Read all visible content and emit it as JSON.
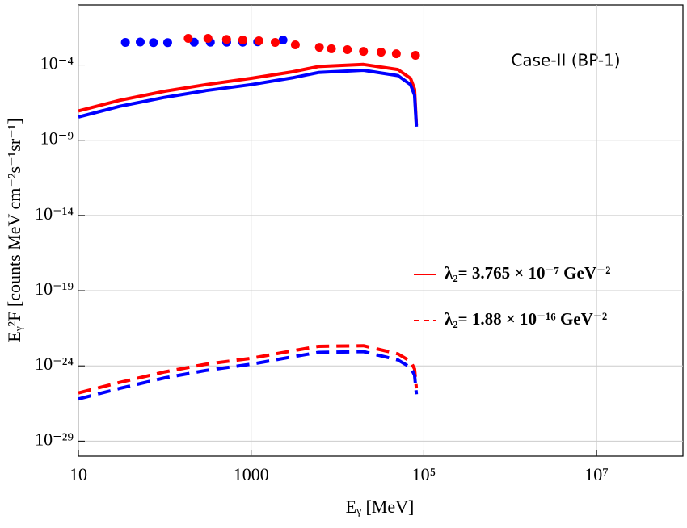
{
  "chart_data": {
    "type": "line",
    "annotation": "Case-II (BP-1)",
    "x_label": "Eᵧ [MeV]",
    "y_label": "Eᵧ²F [counts MeV cm⁻²s⁻¹sr⁻¹]",
    "xscale": "log",
    "yscale": "log",
    "grid": true,
    "xlim": [
      10,
      100000000
    ],
    "ylim": [
      1e-30,
      1
    ],
    "xticks": [
      10,
      1000,
      {
        "value": 100000,
        "label": "10⁵"
      },
      {
        "value": 10000000,
        "label": "10⁷"
      }
    ],
    "yticks": [
      {
        "value": 0.0001,
        "label": "10⁻⁴"
      },
      {
        "value": 1e-09,
        "label": "10⁻⁹"
      },
      {
        "value": 1e-14,
        "label": "10⁻¹⁴"
      },
      {
        "value": 1e-19,
        "label": "10⁻¹⁹"
      },
      {
        "value": 1e-24,
        "label": "10⁻²⁴"
      },
      {
        "value": 1e-29,
        "label": "10⁻²⁹"
      }
    ],
    "series": [
      {
        "name": "λ₂= 3.765 × 10⁻⁷ GeV⁻²",
        "color": "#ff0000",
        "style": "solid",
        "x": [
          10,
          30,
          100,
          300,
          1000,
          3000,
          6000,
          20000,
          50000,
          70000,
          78000,
          82000
        ],
        "values": [
          8.9e-08,
          4.5e-07,
          1.8e-06,
          5e-06,
          1.3e-05,
          3.5e-05,
          7.9e-05,
          0.00011,
          5e-05,
          1.3e-05,
          2.5e-06,
          1e-08
        ]
      },
      {
        "color": "#0000ff",
        "style": "solid",
        "x": [
          10,
          30,
          100,
          300,
          1000,
          3000,
          6000,
          20000,
          50000,
          70000,
          78000,
          82000
        ],
        "values": [
          3.5e-08,
          1.8e-07,
          7.1e-07,
          2e-06,
          5e-06,
          1.4e-05,
          3.2e-05,
          4.5e-05,
          2e-05,
          5e-06,
          1e-06,
          8e-09
        ]
      },
      {
        "name": "λ₂= 1.88 × 10⁻¹⁶ GeV⁻²",
        "color": "#ff0000",
        "style": "dashed",
        "x": [
          10,
          30,
          100,
          300,
          1000,
          3000,
          6000,
          20000,
          50000,
          70000,
          78000,
          82000
        ],
        "values": [
          1.6e-26,
          7.9e-26,
          4e-25,
          1.3e-24,
          3.2e-24,
          1e-23,
          2e-23,
          2.2e-23,
          6.3e-24,
          2e-24,
          6.3e-25,
          3.2e-26
        ]
      },
      {
        "color": "#0000ff",
        "style": "dashed",
        "x": [
          10,
          30,
          100,
          300,
          1000,
          3000,
          6000,
          20000,
          50000,
          70000,
          78000,
          82000
        ],
        "values": [
          6.3e-27,
          3.2e-26,
          1.6e-25,
          5e-25,
          1.3e-24,
          4e-24,
          7.9e-24,
          8.9e-24,
          2.5e-24,
          7.9e-25,
          2.5e-25,
          1.3e-26
        ]
      },
      {
        "color": "#0000ff",
        "style": "markers",
        "x": [
          35,
          52,
          74,
          108,
          219,
          337,
          521,
          800,
          1190,
          2340
        ],
        "values": [
          0.0032,
          0.0034,
          0.0031,
          0.0031,
          0.0033,
          0.0033,
          0.0033,
          0.0033,
          0.0035,
          0.0046
        ]
      },
      {
        "color": "#ff0000",
        "style": "markers",
        "x": [
          187,
          316,
          519,
          800,
          1230,
          1900,
          3250,
          6170,
          8500,
          13000,
          20000,
          32000,
          48000,
          80000
        ],
        "values": [
          0.0059,
          0.0059,
          0.0051,
          0.0046,
          0.0041,
          0.0032,
          0.0022,
          0.0015,
          0.0012,
          0.00105,
          0.00081,
          0.00072,
          0.00056,
          0.00044
        ]
      }
    ]
  }
}
